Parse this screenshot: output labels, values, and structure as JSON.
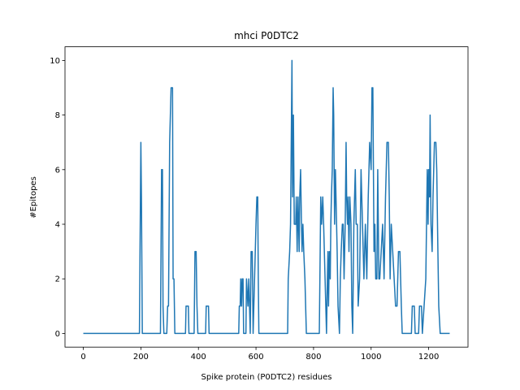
{
  "chart_data": {
    "type": "line",
    "title": "mhci P0DTC2",
    "xlabel": "Spike protein (P0DTC2) residues",
    "ylabel": "#Epitopes",
    "xlim": [
      -63.6,
      1336.6
    ],
    "ylim": [
      -0.5,
      10.5
    ],
    "xticks": [
      0,
      200,
      400,
      600,
      800,
      1000,
      1200
    ],
    "yticks": [
      0,
      2,
      4,
      6,
      8,
      10
    ],
    "series": [
      {
        "color": "#1f77b4",
        "x": [
          0,
          195,
          197,
          200,
          202,
          205,
          268,
          270,
          272,
          275,
          277,
          280,
          290,
          293,
          296,
          300,
          305,
          310,
          312,
          315,
          318,
          355,
          357,
          365,
          367,
          385,
          388,
          392,
          395,
          398,
          425,
          427,
          435,
          437,
          540,
          542,
          545,
          547,
          550,
          552,
          555,
          557,
          565,
          567,
          572,
          575,
          580,
          583,
          587,
          590,
          595,
          600,
          603,
          606,
          608,
          610,
          710,
          712,
          717,
          720,
          725,
          727,
          730,
          733,
          738,
          740,
          743,
          746,
          750,
          752,
          755,
          758,
          760,
          763,
          766,
          770,
          775,
          820,
          822,
          825,
          828,
          832,
          835,
          840,
          845,
          848,
          850,
          852,
          855,
          858,
          860,
          862,
          865,
          868,
          870,
          873,
          876,
          880,
          882,
          885,
          890,
          893,
          896,
          900,
          903,
          906,
          910,
          913,
          915,
          918,
          920,
          923,
          926,
          930,
          933,
          936,
          940,
          945,
          948,
          952,
          955,
          960,
          965,
          970,
          975,
          980,
          985,
          990,
          995,
          1000,
          1003,
          1006,
          1008,
          1010,
          1013,
          1016,
          1020,
          1023,
          1027,
          1030,
          1035,
          1040,
          1045,
          1050,
          1055,
          1060,
          1063,
          1066,
          1070,
          1075,
          1080,
          1085,
          1090,
          1095,
          1100,
          1105,
          1108,
          1140,
          1143,
          1150,
          1153,
          1165,
          1168,
          1175,
          1178,
          1190,
          1195,
          1198,
          1200,
          1203,
          1205,
          1208,
          1212,
          1215,
          1220,
          1225,
          1228,
          1232,
          1235,
          1240,
          1273
        ],
        "values": [
          0,
          0,
          3,
          7,
          5,
          0,
          0,
          3,
          6,
          6,
          1,
          0,
          0,
          1,
          1,
          7,
          9,
          9,
          2,
          2,
          0,
          0,
          1,
          1,
          0,
          0,
          3,
          3,
          1,
          0,
          0,
          1,
          1,
          0,
          0,
          1,
          1,
          2,
          1,
          2,
          2,
          0,
          0,
          2,
          1,
          2,
          0,
          3,
          3,
          0,
          2,
          4,
          5,
          5,
          2,
          0,
          0,
          2,
          3,
          4,
          10,
          5,
          8,
          4,
          4,
          5,
          3,
          5,
          3,
          5,
          6,
          4,
          3,
          4,
          3,
          2,
          0,
          0,
          2,
          5,
          4,
          5,
          4,
          2,
          0,
          2,
          3,
          1,
          3,
          2,
          4,
          5,
          6,
          9,
          8,
          4,
          6,
          4,
          3,
          1,
          0,
          2,
          3,
          4,
          4,
          2,
          4,
          7,
          5,
          4,
          5,
          3,
          5,
          4,
          1,
          0,
          4,
          6,
          4,
          4,
          1,
          2,
          6,
          4,
          2,
          4,
          2,
          5,
          7,
          6,
          9,
          9,
          6,
          3,
          4,
          2,
          2,
          6,
          2,
          2,
          3,
          4,
          2,
          5,
          7,
          7,
          5,
          2,
          4,
          3,
          2,
          1,
          1,
          3,
          3,
          1,
          0,
          0,
          1,
          1,
          0,
          0,
          1,
          1,
          0,
          2,
          6,
          4,
          6,
          5,
          8,
          4,
          3,
          5,
          7,
          7,
          6,
          3,
          1,
          0,
          0
        ]
      }
    ]
  }
}
